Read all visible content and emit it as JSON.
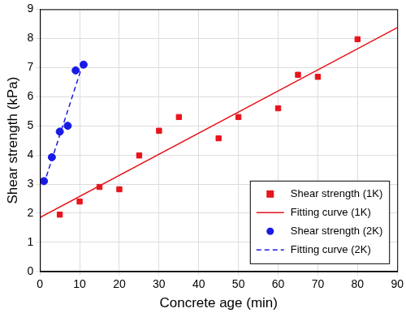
{
  "chart_data": {
    "type": "scatter",
    "x_label": "Concrete age (min)",
    "y_label": "Shear strength (kPa)",
    "xlim": [
      0,
      90
    ],
    "xticks": [
      0,
      10,
      20,
      30,
      40,
      50,
      60,
      70,
      80,
      90
    ],
    "ylim": [
      0,
      9
    ],
    "yticks": [
      0,
      1,
      2,
      3,
      4,
      5,
      6,
      7,
      8,
      9
    ],
    "grid": true,
    "legend": "lower right",
    "series": [
      {
        "name": "Shear strength (1K)",
        "type": "scatter",
        "color": "#e8141c",
        "marker": "square",
        "x": [
          5,
          10,
          15,
          20,
          25,
          30,
          35,
          45,
          50,
          60,
          65,
          70,
          80
        ],
        "values": [
          1.95,
          2.4,
          2.9,
          2.82,
          3.98,
          4.83,
          5.3,
          4.57,
          5.3,
          5.6,
          6.75,
          6.68,
          7.97
        ]
      },
      {
        "name": "Fitting curve (1K)",
        "type": "line",
        "color": "#e8141c",
        "line_style": "solid",
        "x": [
          0,
          90
        ],
        "values": [
          1.85,
          8.37
        ]
      },
      {
        "name": "Shear strength (2K)",
        "type": "scatter",
        "color": "#1a1ae6",
        "marker": "circle",
        "x": [
          1,
          3,
          5,
          7,
          9,
          11
        ],
        "values": [
          3.1,
          3.92,
          4.8,
          5.0,
          6.9,
          7.1
        ]
      },
      {
        "name": "Fitting curve (2K)",
        "type": "line",
        "color": "#1a1ae6",
        "line_style": "dashed",
        "x": [
          1,
          11
        ],
        "values": [
          3.0,
          7.2
        ]
      }
    ]
  }
}
